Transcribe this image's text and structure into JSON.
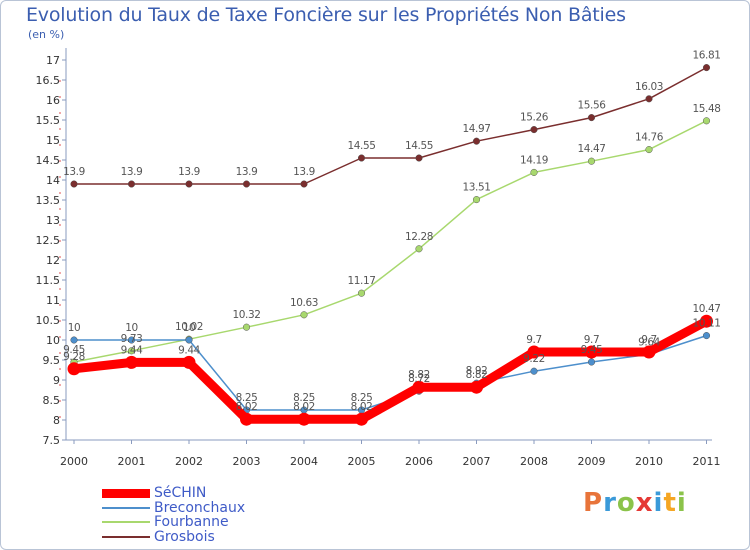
{
  "page": {
    "title": "Evolution du Taux de Taxe Foncière sur les Propriétés Non Bâties",
    "subtitle": "(en %)"
  },
  "logo": {
    "text": "Proxiti",
    "letters": [
      {
        "ch": "P",
        "color": "#e8743a"
      },
      {
        "ch": "r",
        "color": "#3a9ad9"
      },
      {
        "ch": "o",
        "color": "#8bc34a"
      },
      {
        "ch": "x",
        "color": "#e53935"
      },
      {
        "ch": "i",
        "color": "#3a9ad9"
      },
      {
        "ch": "t",
        "color": "#f5a623"
      },
      {
        "ch": "i",
        "color": "#8bc34a"
      }
    ]
  },
  "chart_data": {
    "type": "line",
    "title": "Evolution du Taux de Taxe Foncière sur les Propriétés Non Bâties",
    "ylabel": "(en %)",
    "xlabel": "",
    "ylim": [
      7.5,
      17
    ],
    "grid": false,
    "legend": "bottom-left",
    "x": [
      "2000",
      "2001",
      "2002",
      "2003",
      "2004",
      "2005",
      "2006",
      "2007",
      "2008",
      "2009",
      "2010",
      "2011"
    ],
    "yticks": [
      "7.5",
      "8",
      "8.5",
      "9",
      "9.5",
      "10",
      "10.5",
      "11",
      "11.5",
      "12",
      "12.5",
      "13",
      "13.5",
      "14",
      "14.5",
      "15",
      "15.5",
      "16",
      "16.5",
      "17"
    ],
    "series": [
      {
        "name": "SéCHIN",
        "color": "#ff0000",
        "values": [
          9.28,
          9.44,
          9.44,
          8.02,
          8.02,
          8.02,
          8.82,
          8.82,
          9.7,
          9.7,
          9.7,
          10.47
        ],
        "labels": [
          "9.28",
          "9.44",
          "9.44",
          "8.02",
          "8.02",
          "8.02",
          "8.82",
          "8.82",
          "9.7",
          "9.7",
          "9.7",
          "10.47"
        ]
      },
      {
        "name": "Breconchaux",
        "color": "#4d8fcc",
        "values": [
          10,
          10,
          10,
          8.25,
          8.25,
          8.25,
          8.72,
          8.92,
          9.22,
          9.45,
          9.64,
          10.11
        ],
        "labels": [
          "10",
          "10",
          "10",
          "8.25",
          "8.25",
          "8.25",
          "8.72",
          "8.92",
          "9.22",
          "9.45",
          "9.64",
          "10.11"
        ]
      },
      {
        "name": "Fourbanne",
        "color": "#a8d86e",
        "values": [
          9.45,
          9.73,
          10.02,
          10.32,
          10.63,
          11.17,
          12.28,
          13.51,
          14.19,
          14.47,
          14.76,
          15.48
        ],
        "labels": [
          "9.45",
          "9.73",
          "10.02",
          "10.32",
          "10.63",
          "11.17",
          "12.28",
          "13.51",
          "14.19",
          "14.47",
          "14.76",
          "15.48"
        ]
      },
      {
        "name": "Grosbois",
        "color": "#7a2e2e",
        "values": [
          13.9,
          13.9,
          13.9,
          13.9,
          13.9,
          14.55,
          14.55,
          14.97,
          15.26,
          15.56,
          16.03,
          16.81
        ],
        "labels": [
          "13.9",
          "13.9",
          "13.9",
          "13.9",
          "13.9",
          "14.55",
          "14.55",
          "14.97",
          "15.26",
          "15.56",
          "16.03",
          "16.81"
        ]
      }
    ]
  }
}
